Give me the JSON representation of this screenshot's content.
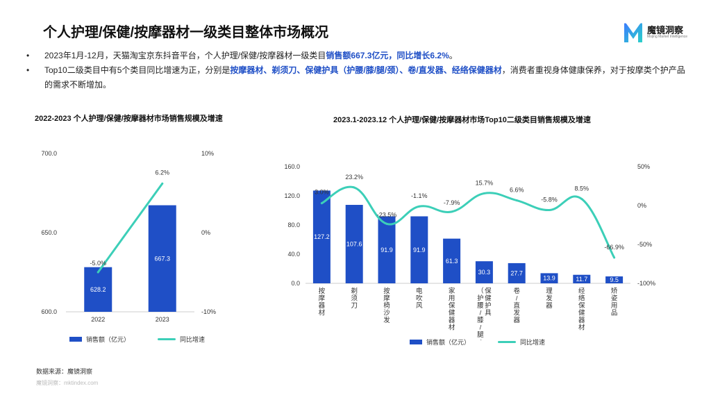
{
  "page": {
    "title": "个人护理/保健/按摩器材一级类目整体市场概况",
    "logo_name": "魔镜洞察",
    "logo_sub": "Mojing Market Intelligence",
    "bullet_marker": "•",
    "bullets": [
      {
        "prefix": "2023年1月-12月，天猫淘宝京东抖音平台，个人护理/保健/按摩器材一级类目",
        "highlight": "销售额667.3亿元，同比增长6.2%",
        "suffix": "。"
      },
      {
        "prefix": "Top10二级类目中有5个类目同比增速为正，分别是",
        "highlight": "按摩器材、剃须刀、保健护具（护腰/膝/腿/颈）、卷/直发器、经络保健器材",
        "suffix": "，消费者重视身体健康保养，对于按摩类个护产品的需求不断增加。"
      }
    ],
    "source": "数据来源：魔镜洞察",
    "watermark": "魔镜洞察：mktindex.com"
  },
  "colors": {
    "bar": "#1f4fc6",
    "line": "#3ccfb8",
    "text": "#222222",
    "highlight": "#1f4fc6"
  },
  "chart_data": [
    {
      "type": "bar+line",
      "title": "2022-2023 个人护理/保健/按摩器材市场销售规模及增速",
      "categories": [
        "2022",
        "2023"
      ],
      "series": [
        {
          "name": "销售额（亿元）",
          "type": "bar",
          "axis": "left",
          "values": [
            628.2,
            667.3
          ],
          "labels": [
            "628.2",
            "667.3"
          ]
        },
        {
          "name": "同比增速",
          "type": "line",
          "axis": "right",
          "values": [
            -5.0,
            6.2
          ],
          "labels": [
            "-5.0%",
            "6.2%"
          ]
        }
      ],
      "y_left": {
        "min": 600,
        "max": 700,
        "ticks": [
          "600.0",
          "650.0",
          "700.0"
        ],
        "tick_values": [
          600,
          650,
          700
        ]
      },
      "y_right": {
        "min": -10,
        "max": 10,
        "ticks": [
          "-10%",
          "0%",
          "10%"
        ],
        "tick_values": [
          -10,
          0,
          10
        ]
      },
      "legend": [
        "销售额（亿元）",
        "同比增速"
      ]
    },
    {
      "type": "bar+line",
      "title": "2023.1-2023.12 个人护理/保健/按摩器材市场Top10二级类目销售规模及增速",
      "categories": [
        "按摩器材",
        "剃须刀",
        "按摩椅沙发",
        "电吹风",
        "家用保健器材",
        "保健护具（护腰/膝/腿/颈）",
        "卷/直发器",
        "理发器",
        "经络保健器材",
        "矫姿用品"
      ],
      "category_lines": [
        [
          "按摩器材"
        ],
        [
          "剃须刀"
        ],
        [
          "按摩椅沙发"
        ],
        [
          "电吹风"
        ],
        [
          "家用保健器材"
        ],
        [
          "保健护具",
          "（护腰/膝/腿/颈）"
        ],
        [
          "卷/直发器"
        ],
        [
          "理发器"
        ],
        [
          "经络保健器材"
        ],
        [
          "矫姿用品"
        ]
      ],
      "series": [
        {
          "name": "销售额（亿元）",
          "type": "bar",
          "axis": "left",
          "values": [
            127.2,
            107.6,
            91.9,
            91.9,
            61.3,
            30.3,
            27.7,
            13.9,
            11.7,
            9.5
          ],
          "labels": [
            "127.2",
            "107.6",
            "91.9",
            "91.9",
            "61.3",
            "30.3",
            "27.7",
            "13.9",
            "11.7",
            "9.5"
          ]
        },
        {
          "name": "同比增速",
          "type": "line",
          "axis": "right",
          "values": [
            3.0,
            23.2,
            -23.5,
            -1.1,
            -7.9,
            15.7,
            6.6,
            -5.8,
            8.5,
            -66.9
          ],
          "labels": [
            "3.0%",
            "23.2%",
            "-23.5%",
            "-1.1%",
            "-7.9%",
            "15.7%",
            "6.6%",
            "-5.8%",
            "8.5%",
            "-66.9%"
          ]
        }
      ],
      "y_left": {
        "min": 0,
        "max": 160,
        "ticks": [
          "0.0",
          "40.0",
          "80.0",
          "120.0",
          "160.0"
        ],
        "tick_values": [
          0,
          40,
          80,
          120,
          160
        ]
      },
      "y_right": {
        "min": -100,
        "max": 50,
        "ticks": [
          "-100%",
          "-50%",
          "0%",
          "50%"
        ],
        "tick_values": [
          -100,
          -50,
          0,
          50
        ]
      },
      "legend": [
        "销售额（亿元）",
        "同比增速"
      ]
    }
  ]
}
